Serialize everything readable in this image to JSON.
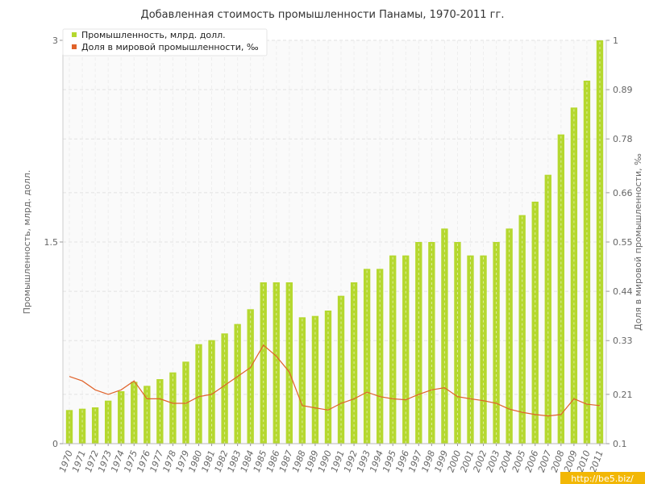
{
  "chart_data": {
    "type": "bar",
    "title": "Добавленная стоимость промышленности Панамы, 1970-2011 гг.",
    "ylabel": "Промышленность, млрд. долл.",
    "y2label": "Доля в мировой промышленности, ‰",
    "ylim": [
      0,
      3
    ],
    "y2lim": [
      0.1,
      1
    ],
    "y_ticks": [
      "0",
      "1.5",
      "3"
    ],
    "y2_ticks": [
      "0.1",
      "0.21",
      "0.33",
      "0.44",
      "0.55",
      "0.66",
      "0.78",
      "0.89",
      "1"
    ],
    "grid": true,
    "legend_position": "top-left",
    "categories": [
      "1970",
      "1971",
      "1972",
      "1973",
      "1974",
      "1975",
      "1976",
      "1977",
      "1978",
      "1979",
      "1980",
      "1981",
      "1982",
      "1983",
      "1984",
      "1985",
      "1986",
      "1987",
      "1988",
      "1989",
      "1990",
      "1991",
      "1992",
      "1993",
      "1994",
      "1995",
      "1996",
      "1997",
      "1998",
      "1999",
      "2000",
      "2001",
      "2002",
      "2003",
      "2004",
      "2005",
      "2006",
      "2007",
      "2008",
      "2009",
      "2010",
      "2011"
    ],
    "series": [
      {
        "name": "Промышленность, млрд. долл.",
        "type": "bar",
        "axis": "left",
        "color": "#b5d82f",
        "values": [
          0.25,
          0.26,
          0.27,
          0.32,
          0.39,
          0.46,
          0.43,
          0.48,
          0.53,
          0.61,
          0.74,
          0.77,
          0.82,
          0.89,
          1.0,
          1.2,
          1.2,
          1.2,
          0.94,
          0.95,
          0.99,
          1.1,
          1.2,
          1.3,
          1.3,
          1.4,
          1.4,
          1.5,
          1.5,
          1.6,
          1.5,
          1.4,
          1.4,
          1.5,
          1.6,
          1.7,
          1.8,
          2.0,
          2.3,
          2.5,
          2.7,
          3.0
        ]
      },
      {
        "name": "Доля в мировой промышленности, ‰",
        "type": "line",
        "axis": "right",
        "color": "#e0622a",
        "values": [
          0.25,
          0.24,
          0.22,
          0.21,
          0.22,
          0.24,
          0.2,
          0.2,
          0.19,
          0.19,
          0.205,
          0.21,
          0.23,
          0.25,
          0.27,
          0.32,
          0.295,
          0.26,
          0.185,
          0.18,
          0.175,
          0.19,
          0.2,
          0.215,
          0.205,
          0.2,
          0.198,
          0.21,
          0.22,
          0.225,
          0.205,
          0.2,
          0.196,
          0.19,
          0.177,
          0.17,
          0.165,
          0.162,
          0.165,
          0.2,
          0.188,
          0.185
        ]
      }
    ]
  },
  "watermark": "http://be5.biz/"
}
